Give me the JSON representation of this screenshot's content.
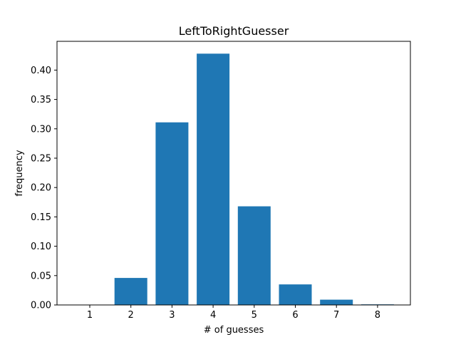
{
  "chart_data": {
    "type": "bar",
    "title": "LeftToRightGuesser",
    "xlabel": "# of guesses",
    "ylabel": "frequency",
    "categories": [
      "1",
      "2",
      "3",
      "4",
      "5",
      "6",
      "7",
      "8"
    ],
    "values": [
      0.0,
      0.046,
      0.311,
      0.428,
      0.168,
      0.035,
      0.009,
      0.001
    ],
    "yticks": [
      "0.00",
      "0.05",
      "0.10",
      "0.15",
      "0.20",
      "0.25",
      "0.30",
      "0.35",
      "0.40"
    ],
    "ylim": [
      0,
      0.449
    ],
    "grid": false,
    "bar_color": "#1f77b4"
  }
}
